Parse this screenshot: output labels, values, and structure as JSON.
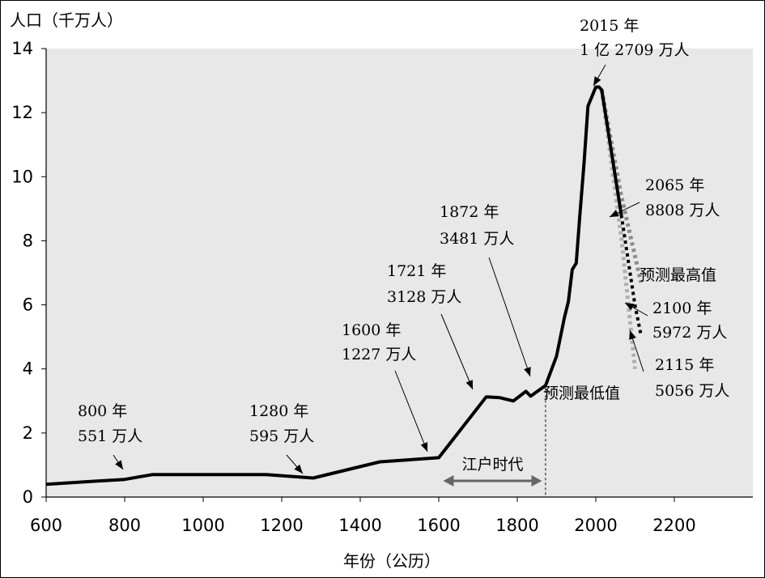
{
  "chart_data": {
    "type": "line",
    "ylabel": "人口（千万人）",
    "xlabel": "年份（公历）",
    "xlim": [
      600,
      2400
    ],
    "ylim": [
      0,
      14
    ],
    "x_ticks": [
      600,
      800,
      1000,
      1200,
      1400,
      1600,
      1800,
      2000,
      2200
    ],
    "y_ticks": [
      0,
      2,
      4,
      6,
      8,
      10,
      12,
      14
    ],
    "grid": false,
    "background": "#e8e8e8",
    "series": [
      {
        "style": "solid",
        "color": "#000000",
        "points": [
          [
            600,
            0.4
          ],
          [
            800,
            0.551
          ],
          [
            870,
            0.7
          ],
          [
            1160,
            0.7
          ],
          [
            1280,
            0.595
          ],
          [
            1450,
            1.1
          ],
          [
            1600,
            1.227
          ],
          [
            1721,
            3.128
          ],
          [
            1756,
            3.1
          ],
          [
            1790,
            3.0
          ],
          [
            1822,
            3.3
          ],
          [
            1834,
            3.15
          ],
          [
            1872,
            3.481
          ],
          [
            1900,
            4.4
          ],
          [
            1920,
            5.6
          ],
          [
            1930,
            6.1
          ],
          [
            1940,
            7.1
          ],
          [
            1950,
            7.3
          ],
          [
            1960,
            8.9
          ],
          [
            1970,
            10.4
          ],
          [
            1980,
            12.2
          ],
          [
            2000,
            12.8
          ],
          [
            2008,
            12.8
          ],
          [
            2015,
            12.709
          ],
          [
            2065,
            8.808
          ]
        ]
      },
      {
        "style": "dotted",
        "color": "#000000",
        "points": [
          [
            2065,
            8.808
          ],
          [
            2100,
            5.972
          ],
          [
            2115,
            5.056
          ]
        ]
      },
      {
        "name": "预测最高值",
        "style": "dotted",
        "color": "#8c8c8c",
        "points": [
          [
            2015,
            12.709
          ],
          [
            2065,
            9.4
          ],
          [
            2115,
            6.7
          ]
        ]
      },
      {
        "name": "预测最低值",
        "style": "dotted",
        "color": "#b0b0b0",
        "points": [
          [
            2015,
            12.709
          ],
          [
            2065,
            8.1
          ],
          [
            2100,
            4.0
          ]
        ]
      }
    ],
    "annotations": [
      {
        "year": "800 年",
        "pop": "551 万人"
      },
      {
        "year": "1280 年",
        "pop": "595 万人"
      },
      {
        "year": "1600 年",
        "pop": "1227 万人"
      },
      {
        "year": "1721 年",
        "pop": "3128 万人"
      },
      {
        "year": "1872 年",
        "pop": "3481 万人"
      },
      {
        "year": "2015 年",
        "pop": "1 亿 2709 万人"
      },
      {
        "year": "2065 年",
        "pop": "8808 万人"
      },
      {
        "year": "2100 年",
        "pop": "5972 万人"
      },
      {
        "year": "2115 年",
        "pop": "5056 万人"
      }
    ],
    "legend_labels": {
      "high": "预测最高值",
      "low": "预测最低值"
    },
    "era": {
      "label": "江户时代",
      "from": 1603,
      "to": 1867
    }
  }
}
